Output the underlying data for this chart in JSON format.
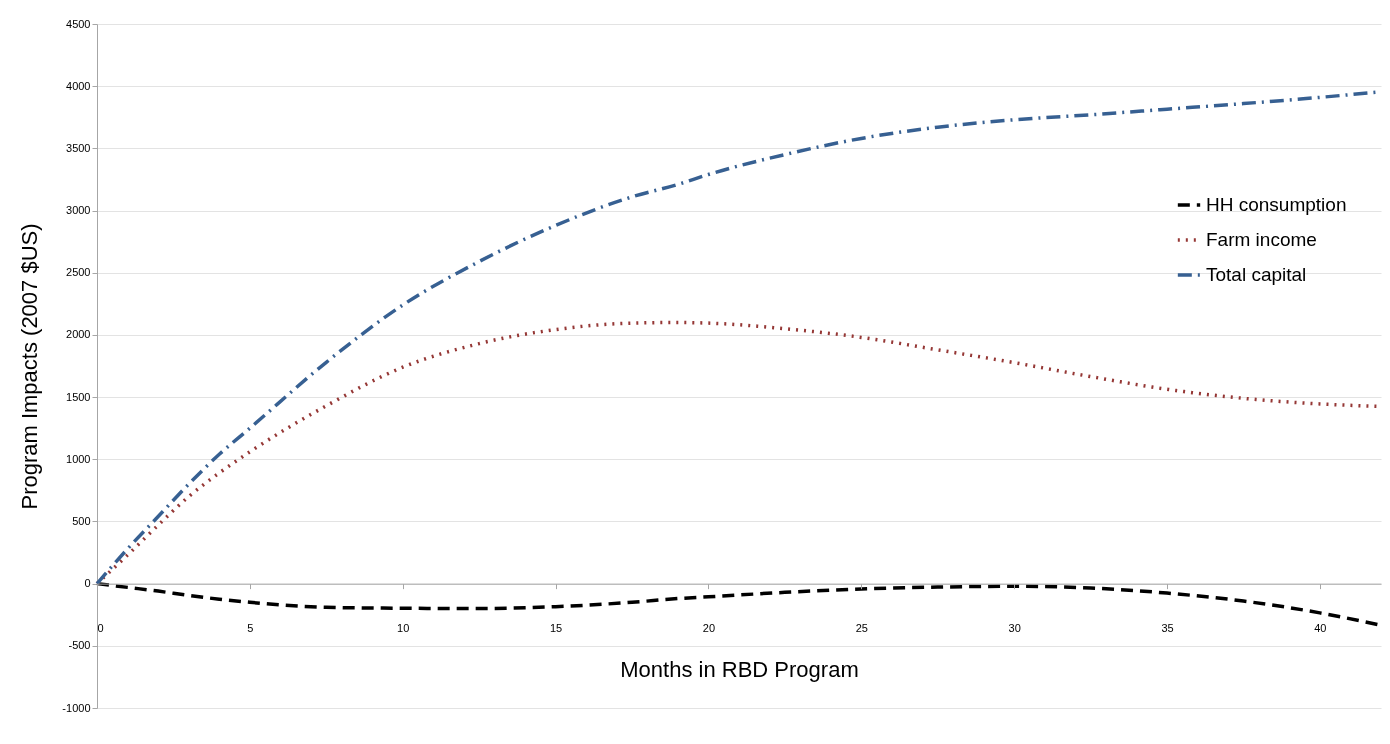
{
  "chart_data": {
    "type": "line",
    "xlabel": "Months in RBD Program",
    "ylabel": "Program Impacts (2007 $US)",
    "x": [
      0,
      1,
      2,
      3,
      4,
      5,
      7.5,
      10,
      12.5,
      15,
      17.5,
      19,
      20,
      22.5,
      25,
      27.5,
      30,
      32.5,
      35,
      37.5,
      40,
      42
    ],
    "series": [
      {
        "name": "HH consumption",
        "color": "#000000",
        "line_style": "dashed",
        "values": [
          0,
          -30,
          -60,
          -95,
          -125,
          -150,
          -190,
          -198,
          -200,
          -185,
          -150,
          -120,
          -106,
          -70,
          -43,
          -28,
          -21,
          -35,
          -76,
          -140,
          -235,
          -335
        ]
      },
      {
        "name": "Farm income",
        "color": "#953735",
        "line_style": "dotted",
        "values": [
          0,
          230,
          470,
          700,
          890,
          1060,
          1430,
          1740,
          1930,
          2043,
          2095,
          2100,
          2095,
          2050,
          1980,
          1880,
          1777,
          1665,
          1563,
          1490,
          1445,
          1425
        ]
      },
      {
        "name": "Total capital",
        "color": "#376092",
        "line_style": "dashdot",
        "values": [
          0,
          280,
          540,
          800,
          1040,
          1250,
          1780,
          2240,
          2590,
          2880,
          3110,
          3210,
          3290,
          3450,
          3580,
          3670,
          3730,
          3770,
          3815,
          3860,
          3910,
          3955
        ]
      }
    ],
    "xlim": [
      0,
      42
    ],
    "xticks": [
      0,
      5,
      10,
      15,
      20,
      25,
      30,
      35,
      40
    ],
    "ylim": [
      -1000,
      4500
    ],
    "yticks": [
      -1000,
      -500,
      0,
      500,
      1000,
      1500,
      2000,
      2500,
      3000,
      3500,
      4000,
      4500
    ],
    "grid": "y",
    "legend": "top right",
    "marker": "none"
  }
}
